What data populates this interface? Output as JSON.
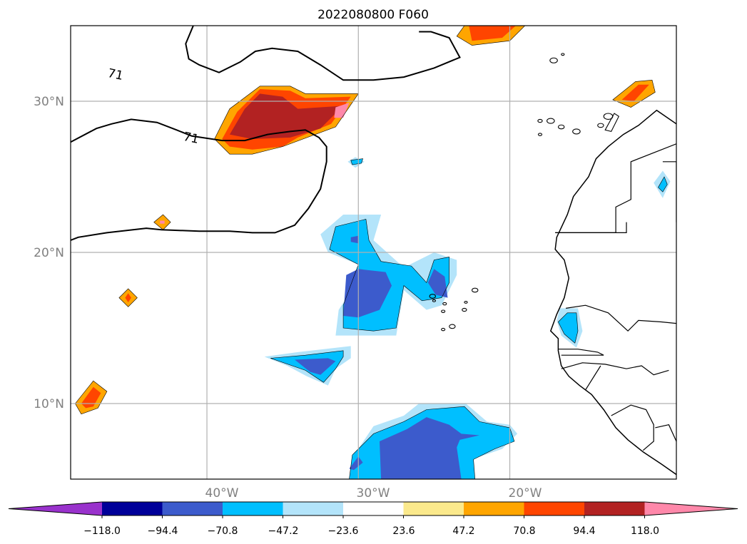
{
  "chart_data": {
    "type": "filled-contour-map",
    "title": "2022080800 F060",
    "projection": "PlateCarree",
    "xlim": [
      -49,
      -9
    ],
    "ylim": [
      5,
      35
    ],
    "lon_ticks": [
      {
        "value": -40,
        "label": "40°W"
      },
      {
        "value": -30,
        "label": "30°W"
      },
      {
        "value": -20,
        "label": "20°W"
      }
    ],
    "lat_ticks": [
      {
        "value": 10,
        "label": "10°N"
      },
      {
        "value": 20,
        "label": "20°N"
      },
      {
        "value": 30,
        "label": "30°N"
      }
    ],
    "grid": true,
    "colorbar": {
      "orientation": "horizontal",
      "extend": "both",
      "levels": [
        -141.6,
        -118.0,
        -94.4,
        -70.8,
        -47.2,
        -23.6,
        23.6,
        47.2,
        70.8,
        94.4,
        118.0,
        141.6
      ],
      "tick_labels": [
        "−118.0",
        "−94.4",
        "−70.8",
        "−47.2",
        "−23.6",
        "23.6",
        "47.2",
        "70.8",
        "94.4",
        "118.0"
      ],
      "tick_values": [
        -118.0,
        -94.4,
        -70.8,
        -47.2,
        -23.6,
        23.6,
        47.2,
        70.8,
        94.4,
        118.0
      ],
      "under_color": "#9932cc",
      "over_color": "#ff88aa",
      "colors": [
        "#9932cc",
        "#000099",
        "#3c5bcc",
        "#00bfff",
        "#b3e4fa",
        "#ffffff",
        "#fbe98c",
        "#ffa500",
        "#ff4500",
        "#b22222",
        "#ff88aa"
      ]
    },
    "contour_lines": [
      {
        "level_label": "71"
      },
      {
        "level_label": "71"
      }
    ],
    "shaded_regions": [
      {
        "level": 47.2,
        "pts": [
          [
            -39.5,
            27.5
          ],
          [
            -38.5,
            29.5
          ],
          [
            -36.5,
            31
          ],
          [
            -34.5,
            31
          ],
          [
            -33.5,
            30.5
          ],
          [
            -30,
            30.5
          ],
          [
            -31.5,
            28.3
          ],
          [
            -35,
            27
          ],
          [
            -37,
            26.5
          ],
          [
            -38.5,
            26.5
          ]
        ]
      },
      {
        "level": 70.8,
        "pts": [
          [
            -39,
            27.5
          ],
          [
            -38,
            29.3
          ],
          [
            -36.5,
            30.8
          ],
          [
            -34.5,
            30.7
          ],
          [
            -33.5,
            30.2
          ],
          [
            -30.5,
            30.3
          ],
          [
            -31.8,
            28.5
          ],
          [
            -34,
            27.6
          ],
          [
            -35,
            27
          ],
          [
            -37,
            26.8
          ],
          [
            -38.5,
            27
          ]
        ]
      },
      {
        "level": 94.4,
        "pts": [
          [
            -38.5,
            27.8
          ],
          [
            -37.5,
            29.5
          ],
          [
            -36.5,
            30.5
          ],
          [
            -35,
            30.3
          ],
          [
            -34,
            29.5
          ],
          [
            -31,
            29.7
          ],
          [
            -32.5,
            28.2
          ],
          [
            -34.5,
            27.6
          ],
          [
            -37,
            27.5
          ]
        ]
      },
      {
        "level": 118.0,
        "pts": [
          [
            -31.5,
            29.6
          ],
          [
            -30.6,
            29.9
          ],
          [
            -31,
            28.9
          ],
          [
            -31.6,
            28.9
          ]
        ]
      },
      {
        "level": 47.2,
        "pts": [
          [
            -23,
            35
          ],
          [
            -19,
            35
          ],
          [
            -20,
            34
          ],
          [
            -22.5,
            33.7
          ],
          [
            -23.5,
            34.3
          ]
        ]
      },
      {
        "level": 70.8,
        "pts": [
          [
            -22.7,
            35
          ],
          [
            -19.6,
            35
          ],
          [
            -20.5,
            34.2
          ],
          [
            -22.5,
            34
          ]
        ]
      },
      {
        "level": 47.2,
        "pts": [
          [
            -13.2,
            30.1
          ],
          [
            -11.7,
            31.3
          ],
          [
            -10.6,
            31.4
          ],
          [
            -10.4,
            30.6
          ],
          [
            -12,
            29.6
          ]
        ]
      },
      {
        "level": 70.8,
        "pts": [
          [
            -12.6,
            30.1
          ],
          [
            -11.5,
            31.1
          ],
          [
            -10.8,
            31.1
          ],
          [
            -11.8,
            30
          ]
        ]
      },
      {
        "level": 47.2,
        "pts": [
          [
            -43.5,
            22
          ],
          [
            -42.9,
            22.5
          ],
          [
            -42.4,
            22
          ],
          [
            -42.9,
            21.5
          ]
        ]
      },
      {
        "level": 118.0,
        "pts": [
          [
            -43.1,
            22.1
          ],
          [
            -42.8,
            22.1
          ],
          [
            -42.8,
            21.9
          ],
          [
            -43.1,
            21.9
          ]
        ]
      },
      {
        "level": 47.2,
        "pts": [
          [
            -45.8,
            17
          ],
          [
            -45.2,
            17.6
          ],
          [
            -44.6,
            17
          ],
          [
            -45.2,
            16.4
          ]
        ]
      },
      {
        "level": 70.8,
        "pts": [
          [
            -45.4,
            17
          ],
          [
            -45.2,
            17.3
          ],
          [
            -45,
            17
          ],
          [
            -45.2,
            16.7
          ]
        ]
      },
      {
        "level": 47.2,
        "pts": [
          [
            -48.7,
            10
          ],
          [
            -47.5,
            11.5
          ],
          [
            -46.6,
            10.8
          ],
          [
            -47.2,
            9.7
          ],
          [
            -48.3,
            9.3
          ]
        ]
      },
      {
        "level": 70.8,
        "pts": [
          [
            -48.3,
            10
          ],
          [
            -47.5,
            11.1
          ],
          [
            -47,
            10.7
          ],
          [
            -47.5,
            9.8
          ],
          [
            -48,
            9.7
          ]
        ]
      },
      {
        "level": -23.6,
        "pts": [
          [
            -32,
            20
          ],
          [
            -32.5,
            21.2
          ],
          [
            -31,
            22.5
          ],
          [
            -28.5,
            22.5
          ],
          [
            -29,
            20.8
          ],
          [
            -27,
            19
          ],
          [
            -25,
            20
          ],
          [
            -23.5,
            19.5
          ],
          [
            -23.5,
            18.5
          ],
          [
            -24.5,
            16.5
          ],
          [
            -25.5,
            16.2
          ],
          [
            -27,
            17.5
          ],
          [
            -27.5,
            14.5
          ],
          [
            -29,
            14.5
          ],
          [
            -31.5,
            14.5
          ],
          [
            -31.3,
            16.2
          ],
          [
            -29.5,
            19
          ]
        ]
      },
      {
        "level": -47.2,
        "pts": [
          [
            -31.9,
            20.2
          ],
          [
            -31.5,
            21.7
          ],
          [
            -29.5,
            22.2
          ],
          [
            -29.3,
            20.8
          ],
          [
            -28.5,
            19.4
          ],
          [
            -26.5,
            19.1
          ],
          [
            -25.5,
            18
          ],
          [
            -25,
            19.5
          ],
          [
            -24,
            19.7
          ],
          [
            -24,
            18
          ],
          [
            -24.5,
            17
          ],
          [
            -25.8,
            16.8
          ],
          [
            -27,
            17.8
          ],
          [
            -27.5,
            15
          ],
          [
            -29,
            14.8
          ],
          [
            -31,
            15
          ],
          [
            -31,
            16.5
          ],
          [
            -30,
            19.2
          ]
        ]
      },
      {
        "level": -70.8,
        "pts": [
          [
            -30.8,
            18.5
          ],
          [
            -30,
            18.9
          ],
          [
            -28.2,
            18.7
          ],
          [
            -27.8,
            17.8
          ],
          [
            -28.6,
            16.2
          ],
          [
            -30,
            15.7
          ],
          [
            -31,
            15.8
          ]
        ]
      },
      {
        "level": -70.8,
        "pts": [
          [
            -24.3,
            18.4
          ],
          [
            -25,
            18.9
          ],
          [
            -25.4,
            18
          ],
          [
            -24.9,
            17.2
          ],
          [
            -24.1,
            17
          ]
        ]
      },
      {
        "level": -70.8,
        "pts": [
          [
            -30.5,
            21
          ],
          [
            -30,
            21.1
          ],
          [
            -30,
            20.6
          ],
          [
            -30.5,
            20.7
          ]
        ]
      },
      {
        "level": -23.6,
        "pts": [
          [
            -36.2,
            13.1
          ],
          [
            -34,
            13.4
          ],
          [
            -30.5,
            13.8
          ],
          [
            -30.5,
            13
          ],
          [
            -31.5,
            12.3
          ],
          [
            -32,
            11.2
          ],
          [
            -33.4,
            11.8
          ],
          [
            -34.7,
            12.5
          ]
        ]
      },
      {
        "level": -47.2,
        "pts": [
          [
            -35.8,
            13
          ],
          [
            -33.5,
            13.2
          ],
          [
            -31,
            13.5
          ],
          [
            -31,
            13.1
          ],
          [
            -31.5,
            12.3
          ],
          [
            -32.3,
            11.4
          ],
          [
            -33.5,
            12.2
          ]
        ]
      },
      {
        "level": -70.8,
        "pts": [
          [
            -34.2,
            12.9
          ],
          [
            -32,
            13
          ],
          [
            -31.5,
            12.8
          ],
          [
            -32.5,
            11.9
          ],
          [
            -33.2,
            12.1
          ]
        ]
      },
      {
        "level": -23.6,
        "pts": [
          [
            -30.6,
            5
          ],
          [
            -30,
            7
          ],
          [
            -29,
            8.5
          ],
          [
            -27,
            9.2
          ],
          [
            -26,
            10
          ],
          [
            -22.9,
            10
          ],
          [
            -21.5,
            8.8
          ],
          [
            -20,
            8.6
          ],
          [
            -19.5,
            8
          ],
          [
            -20.5,
            7
          ],
          [
            -22.5,
            6.3
          ],
          [
            -22.7,
            5
          ]
        ]
      },
      {
        "level": -47.2,
        "pts": [
          [
            -30.6,
            5
          ],
          [
            -30.4,
            6.6
          ],
          [
            -29,
            8
          ],
          [
            -27,
            8.8
          ],
          [
            -25.5,
            9.6
          ],
          [
            -23,
            9.8
          ],
          [
            -22,
            8.8
          ],
          [
            -20,
            8.4
          ],
          [
            -19.7,
            7.5
          ],
          [
            -21,
            7
          ],
          [
            -22.4,
            6.3
          ],
          [
            -22.3,
            5
          ]
        ]
      },
      {
        "level": -70.8,
        "pts": [
          [
            -28.5,
            5
          ],
          [
            -28.6,
            7.5
          ],
          [
            -26.8,
            8.3
          ],
          [
            -25.5,
            9.1
          ],
          [
            -24,
            8.6
          ],
          [
            -23.2,
            8
          ],
          [
            -22,
            7.9
          ],
          [
            -23.3,
            7.6
          ],
          [
            -23.5,
            7.1
          ],
          [
            -23.2,
            5
          ]
        ]
      },
      {
        "level": -70.8,
        "pts": [
          [
            -30.6,
            5.7
          ],
          [
            -30,
            6.5
          ],
          [
            -29.7,
            6.1
          ],
          [
            -30.3,
            5.6
          ]
        ]
      },
      {
        "level": -23.6,
        "pts": [
          [
            -30.7,
            26
          ],
          [
            -30.2,
            26.3
          ],
          [
            -29.6,
            26
          ],
          [
            -30.2,
            25.6
          ]
        ]
      },
      {
        "level": -47.2,
        "pts": [
          [
            -30.5,
            26.1
          ],
          [
            -29.7,
            26.2
          ],
          [
            -29.8,
            25.9
          ],
          [
            -30.4,
            25.8
          ]
        ]
      },
      {
        "level": -23.6,
        "pts": [
          [
            -16.9,
            15.5
          ],
          [
            -16.7,
            16.3
          ],
          [
            -15.5,
            16.3
          ],
          [
            -15.2,
            14.8
          ],
          [
            -15.6,
            13.7
          ],
          [
            -16.6,
            14.5
          ]
        ]
      },
      {
        "level": -47.2,
        "pts": [
          [
            -16.8,
            15.4
          ],
          [
            -16.2,
            16
          ],
          [
            -15.6,
            16
          ],
          [
            -15.5,
            14.8
          ],
          [
            -15.7,
            14
          ],
          [
            -16.4,
            14.6
          ]
        ]
      },
      {
        "level": -23.6,
        "pts": [
          [
            -10.5,
            24.6
          ],
          [
            -9.9,
            25.4
          ],
          [
            -9.4,
            24.7
          ],
          [
            -9.9,
            23.6
          ]
        ]
      },
      {
        "level": -47.2,
        "pts": [
          [
            -10.2,
            24.3
          ],
          [
            -9.8,
            25
          ],
          [
            -9.6,
            24.5
          ],
          [
            -9.9,
            24
          ]
        ]
      }
    ]
  }
}
